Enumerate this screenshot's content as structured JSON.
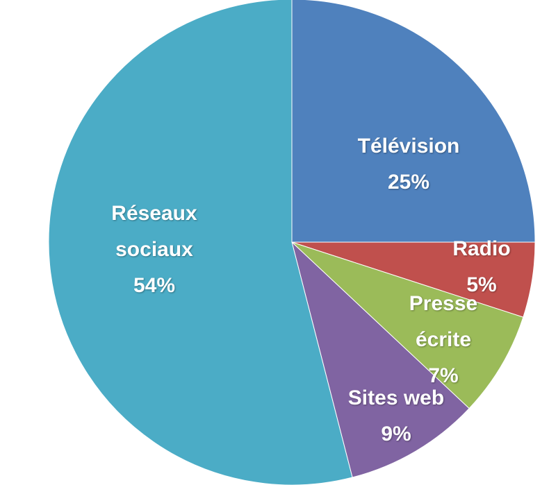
{
  "chart_data": {
    "type": "pie",
    "categories": [
      "Télévision",
      "Radio",
      "Presse écrite",
      "Sites web",
      "Réseaux sociaux"
    ],
    "values": [
      25,
      5,
      7,
      9,
      54
    ],
    "value_labels": [
      "25%",
      "5%",
      "7%",
      "9%",
      "54%"
    ],
    "colors": [
      "#4f81bd",
      "#c0504d",
      "#9bbb59",
      "#8064a2",
      "#4bacc6"
    ]
  }
}
